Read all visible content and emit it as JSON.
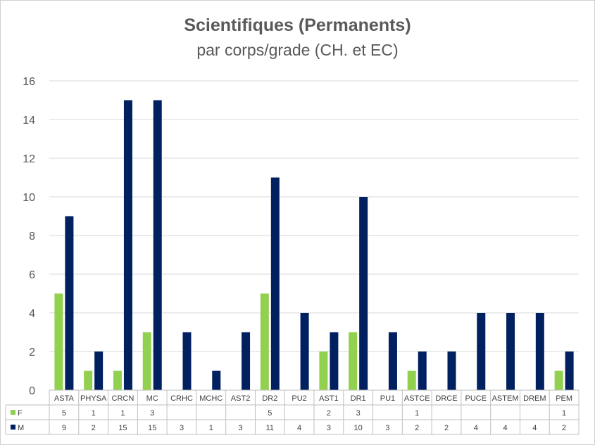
{
  "chart_data": {
    "type": "bar",
    "title": "Scientifiques (Permanents)",
    "subtitle": "par corps/grade (CH. et EC)",
    "categories": [
      "ASTA",
      "PHYSA",
      "CRCN",
      "MC",
      "CRHC",
      "MCHC",
      "AST2",
      "DR2",
      "PU2",
      "AST1",
      "DR1",
      "PU1",
      "ASTCE",
      "DRCE",
      "PUCE",
      "ASTEM",
      "DREM",
      "PEM"
    ],
    "series": [
      {
        "name": "F",
        "color": "#92d050",
        "values": [
          5,
          1,
          1,
          3,
          null,
          null,
          null,
          5,
          null,
          2,
          3,
          null,
          1,
          null,
          null,
          null,
          null,
          1
        ]
      },
      {
        "name": "M",
        "color": "#002060",
        "values": [
          9,
          2,
          15,
          15,
          3,
          1,
          3,
          11,
          4,
          3,
          10,
          3,
          2,
          2,
          4,
          4,
          4,
          2
        ]
      }
    ],
    "ylim": [
      0,
      16
    ],
    "yticks": [
      0,
      2,
      4,
      6,
      8,
      10,
      12,
      14,
      16
    ],
    "grid": true,
    "legend": "data-table"
  }
}
